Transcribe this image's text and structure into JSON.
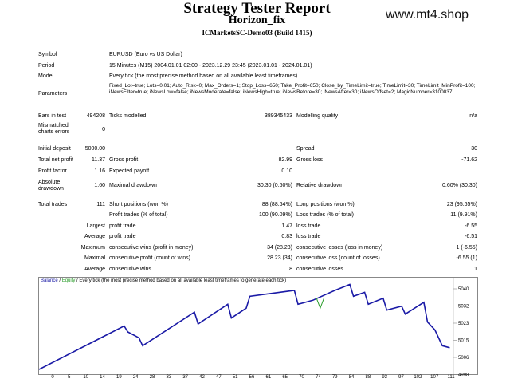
{
  "report": {
    "title": "Strategy Tester Report",
    "ea_name": "Horizon_fix",
    "broker": "ICMarketsSC-Demo03 (Build 1415)",
    "watermark": "www.mt4.shop"
  },
  "info": {
    "symbol_label": "Symbol",
    "symbol_value": "EURUSD (Euro vs US Dollar)",
    "period_label": "Period",
    "period_value": "15 Minutes (M15) 2004.01.01 02:00 - 2023.12.29 23:45 (2023.01.01 - 2024.01.01)",
    "model_label": "Model",
    "model_value": "Every tick (the most precise method based on all available least timeframes)",
    "params_label": "Parameters",
    "params_value": "Fixed_Lot=true; Lots=0.01; Auto_Risk=0; Max_Orders=1; Stop_Loss=650; Take_Profit=650; Close_by_TimeLimit=true; TimeLimit=30; TimeLimit_MinProfit=100; iNewsFilter=true; iNewsLow=false; iNewsModerate=false; iNewsHigh=true; iNewsBefore=30; iNewsAfter=30; iNewsOffset=2; MagicNumber=3100037;"
  },
  "bars": {
    "bars_label": "Bars in test",
    "bars_value": "494208",
    "ticks_label": "Ticks modelled",
    "ticks_value": "389345433",
    "quality_label": "Modelling quality",
    "quality_value": "n/a",
    "mismatch_label1": "Mismatched",
    "mismatch_label2": "charts errors",
    "mismatch_value": "0"
  },
  "stats": {
    "deposit_label": "Initial deposit",
    "deposit_value": "5000.00",
    "spread_label": "Spread",
    "spread_value": "30",
    "netprofit_label": "Total net profit",
    "netprofit_value": "11.37",
    "grossprofit_label": "Gross profit",
    "grossprofit_value": "82.99",
    "grossloss_label": "Gross loss",
    "grossloss_value": "-71.62",
    "pf_label": "Profit factor",
    "pf_value": "1.16",
    "payoff_label": "Expected payoff",
    "payoff_value": "0.10",
    "absdd_label1": "Absolute",
    "absdd_label2": "drawdown",
    "absdd_value": "1.60",
    "maxdd_label": "Maximal drawdown",
    "maxdd_value": "30.30 (0.60%)",
    "reldd_label": "Relative drawdown",
    "reldd_value": "0.60% (30.30)",
    "trades_label": "Total trades",
    "trades_value": "111",
    "short_label": "Short positions (won %)",
    "short_value": "88 (88.64%)",
    "long_label": "Long positions (won %)",
    "long_value": "23 (95.65%)",
    "profit_trades_label": "Profit trades (% of total)",
    "profit_trades_value": "100 (90.09%)",
    "loss_trades_label": "Loss trades (% of total)",
    "loss_trades_value": "11 (9.91%)",
    "largest_label": "Largest",
    "largest_pt_label": "profit trade",
    "largest_pt_value": "1.47",
    "largest_lt_label": "loss trade",
    "largest_lt_value": "-6.55",
    "average_label": "Average",
    "avg_pt_label": "profit trade",
    "avg_pt_value": "0.83",
    "avg_lt_label": "loss trade",
    "avg_lt_value": "-6.51",
    "maximum_label": "Maximum",
    "max_cw_label": "consecutive wins (profit in money)",
    "max_cw_value": "34 (28.23)",
    "max_cl_label": "consecutive losses (loss in money)",
    "max_cl_value": "1 (-6.55)",
    "maximal_label": "Maximal",
    "mx_cp_label": "consecutive profit (count of wins)",
    "mx_cp_value": "28.23 (34)",
    "mx_cl_label": "consecutive loss (count of losses)",
    "mx_cl_value": "-6.55 (1)",
    "average2_label": "Average",
    "avg_cw_label": "consecutive wins",
    "avg_cw_value": "8",
    "avg_cl_label": "consecutive losses",
    "avg_cl_value": "1"
  },
  "chart_header": {
    "balance": "Balance",
    "sep": " / ",
    "equity": "Equity",
    "rest": " / Every tick (the most precise method based on all available least timeframes to generate each tick)"
  },
  "chart_data": {
    "type": "line",
    "ylim": [
      4998,
      5044
    ],
    "y_ticks": [
      "5040",
      "5032",
      "5023",
      "5015",
      "5006",
      "4998"
    ],
    "x_ticks": [
      "0",
      "5",
      "10",
      "14",
      "19",
      "24",
      "28",
      "33",
      "37",
      "42",
      "47",
      "51",
      "56",
      "61",
      "65",
      "70",
      "74",
      "79",
      "84",
      "88",
      "93",
      "97",
      "102",
      "107",
      "111"
    ],
    "series": [
      {
        "name": "Balance",
        "color": "#1a1aa6",
        "x": [
          0,
          23,
          24,
          27,
          28,
          42,
          43,
          51,
          52,
          56,
          57,
          69,
          70,
          74,
          80,
          84,
          85,
          88,
          89,
          93,
          94,
          98,
          99,
          104,
          105,
          107,
          109,
          111
        ],
        "y": [
          5000,
          5022,
          5019,
          5016,
          5012,
          5029,
          5023,
          5033,
          5026,
          5031,
          5037,
          5040,
          5033,
          5035,
          5040,
          5043,
          5037,
          5039,
          5033,
          5036,
          5030,
          5032,
          5028,
          5034,
          5024,
          5020,
          5012,
          5011
        ]
      },
      {
        "name": "Equity",
        "color": "#2b9d2b",
        "x": [
          75,
          76,
          77
        ],
        "y": [
          5036,
          5031,
          5036
        ]
      }
    ]
  }
}
